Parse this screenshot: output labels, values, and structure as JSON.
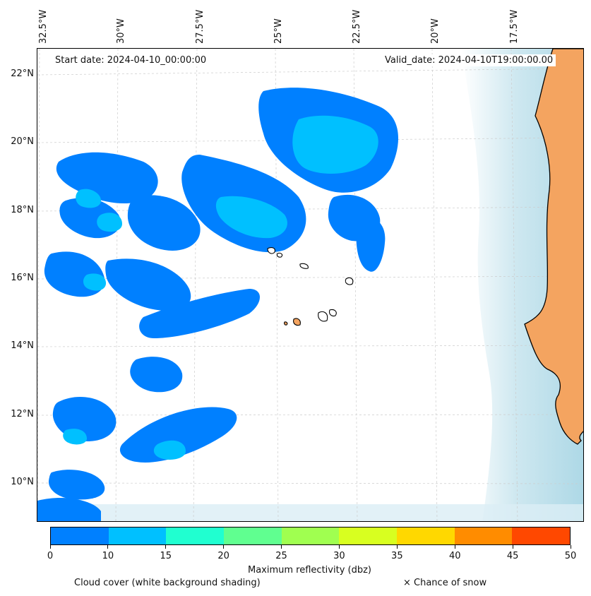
{
  "map": {
    "start_date": "Start date: 2024-04-10_00:00:00",
    "valid_date": "Valid_date: 2024-04-10T19:00:00.00",
    "lon_labels": [
      "32.5°W",
      "30°W",
      "27.5°W",
      "25°W",
      "22.5°W",
      "20°W",
      "17.5°W"
    ],
    "lat_labels": [
      "22°N",
      "20°N",
      "18°N",
      "16°N",
      "14°N",
      "12°N",
      "10°N"
    ],
    "extent": {
      "lon_min": -32.6,
      "lon_max": -15.2,
      "lat_min": 8.9,
      "lat_max": 22.8
    },
    "colors": {
      "land": "#f4a460",
      "ocean_shade": "#add8e6",
      "grid": "#cccccc"
    }
  },
  "colorbar": {
    "ticks": [
      "0",
      "10",
      "15",
      "20",
      "25",
      "30",
      "35",
      "40",
      "45",
      "50"
    ],
    "colors": [
      "#0080ff",
      "#00c0ff",
      "#20ffd0",
      "#60ff90",
      "#a0ff50",
      "#d8ff20",
      "#ffd800",
      "#ff8c00",
      "#ff4800"
    ],
    "label": "Maximum reflectivity (dbz)"
  },
  "legend": {
    "cloud_cover": "Cloud cover (white background shading)",
    "snow": "× Chance of snow"
  }
}
